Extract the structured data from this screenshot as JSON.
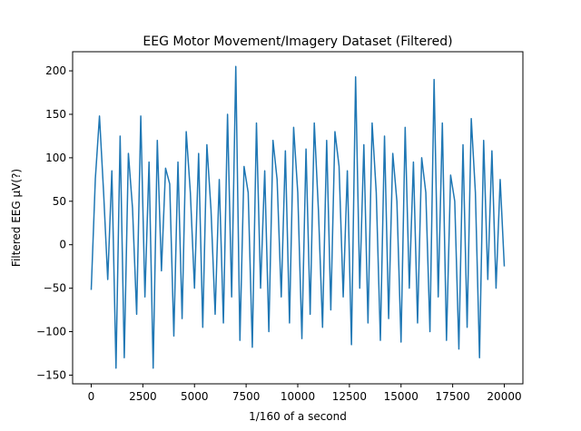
{
  "chart_data": {
    "type": "line",
    "title": "EEG Motor Movement/Imagery Dataset  (Filtered)",
    "xlabel": "1/160 of a second",
    "ylabel": "Filtered EEG µV(?)",
    "xlim": [
      -900,
      20900
    ],
    "ylim": [
      -160,
      222
    ],
    "xticks": [
      0,
      2500,
      5000,
      7500,
      10000,
      12500,
      15000,
      17500,
      20000
    ],
    "xtick_labels": [
      "0",
      "2500",
      "5000",
      "7500",
      "10000",
      "12500",
      "15000",
      "17500",
      "20000"
    ],
    "yticks": [
      -150,
      -100,
      -50,
      0,
      50,
      100,
      150,
      200
    ],
    "ytick_labels": [
      "−150",
      "−100",
      "−50",
      "0",
      "50",
      "100",
      "150",
      "200"
    ],
    "grid": false,
    "legend": "none",
    "series": [
      {
        "color": "#1f77b4",
        "x": [
          0,
          200,
          400,
          600,
          800,
          1000,
          1200,
          1400,
          1600,
          1800,
          2000,
          2200,
          2400,
          2600,
          2800,
          3000,
          3200,
          3400,
          3600,
          3800,
          4000,
          4200,
          4400,
          4600,
          4800,
          5000,
          5200,
          5400,
          5600,
          5800,
          6000,
          6200,
          6400,
          6600,
          6800,
          7000,
          7200,
          7400,
          7600,
          7800,
          8000,
          8200,
          8400,
          8600,
          8800,
          9000,
          9200,
          9400,
          9600,
          9800,
          10000,
          10200,
          10400,
          10600,
          10800,
          11000,
          11200,
          11400,
          11600,
          11800,
          12000,
          12200,
          12400,
          12600,
          12800,
          13000,
          13200,
          13400,
          13600,
          13800,
          14000,
          14200,
          14400,
          14600,
          14800,
          15000,
          15200,
          15400,
          15600,
          15800,
          16000,
          16200,
          16400,
          16600,
          16800,
          17000,
          17200,
          17400,
          17600,
          17800,
          18000,
          18200,
          18400,
          18600,
          18800,
          19000,
          19200,
          19400,
          19600,
          19800,
          20000
        ],
        "y": [
          -52,
          76,
          148,
          60,
          -40,
          85,
          -142,
          125,
          -130,
          105,
          42,
          -80,
          148,
          -60,
          95,
          -142,
          120,
          -30,
          88,
          70,
          -105,
          95,
          -85,
          130,
          60,
          -50,
          105,
          -95,
          115,
          40,
          -80,
          75,
          -90,
          150,
          -60,
          205,
          -110,
          90,
          60,
          -118,
          140,
          -50,
          85,
          -100,
          120,
          75,
          -60,
          108,
          -90,
          135,
          60,
          -108,
          110,
          -80,
          140,
          40,
          -95,
          120,
          -75,
          130,
          90,
          -60,
          85,
          -115,
          193,
          -50,
          115,
          -90,
          140,
          60,
          -110,
          125,
          -85,
          105,
          50,
          -112,
          135,
          -50,
          95,
          -90,
          100,
          60,
          -100,
          190,
          -60,
          140,
          -110,
          80,
          50,
          -120,
          115,
          -95,
          145,
          60,
          -130,
          120,
          -40,
          108,
          -50,
          75,
          -25
        ]
      }
    ]
  }
}
